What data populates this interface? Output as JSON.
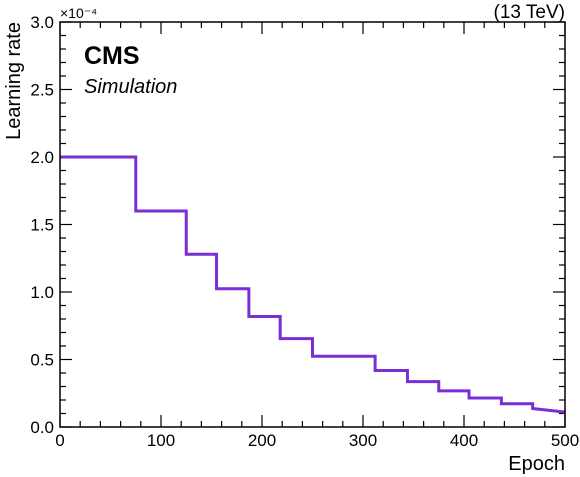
{
  "chart_data": {
    "type": "line",
    "step": true,
    "x": [
      0,
      75,
      75,
      125,
      125,
      155,
      155,
      187,
      187,
      218,
      218,
      250,
      250,
      312,
      312,
      344,
      344,
      375,
      375,
      405,
      405,
      437,
      437,
      468,
      468,
      500
    ],
    "y": [
      2.0,
      2.0,
      1.6,
      1.6,
      1.28,
      1.28,
      1.024,
      1.024,
      0.819,
      0.819,
      0.655,
      0.655,
      0.524,
      0.524,
      0.419,
      0.419,
      0.336,
      0.336,
      0.268,
      0.268,
      0.215,
      0.215,
      0.172,
      0.172,
      0.137,
      0.11
    ],
    "xlim": [
      0,
      500
    ],
    "ylim": [
      0,
      3.0
    ],
    "x_ticks": [
      0,
      100,
      200,
      300,
      400,
      500
    ],
    "x_tick_labels": [
      "0",
      "100",
      "200",
      "300",
      "400",
      "500"
    ],
    "y_ticks": [
      0,
      0.5,
      1.0,
      1.5,
      2.0,
      2.5,
      3.0
    ],
    "y_tick_labels": [
      "0.0",
      "0.5",
      "1.0",
      "1.5",
      "2.0",
      "2.5",
      "3.0"
    ],
    "y_multiplier": "×10⁻⁴",
    "xlabel": "Epoch",
    "ylabel": "Learning rate",
    "line_color": "#7a2ed6",
    "grid": false
  },
  "labels": {
    "experiment": "CMS",
    "status": "Simulation",
    "energy": "(13 TeV)"
  }
}
